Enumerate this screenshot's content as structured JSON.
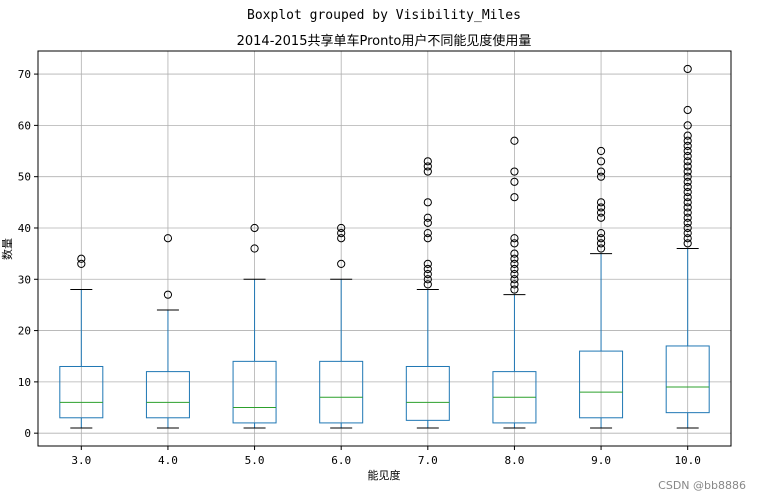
{
  "watermark": "CSDN @bb8886",
  "chart_data": {
    "type": "boxplot",
    "suptitle": "Boxplot grouped by Visibility_Miles",
    "title": "2014-2015共享单车Pronto用户不同能见度使用量",
    "xlabel": "能见度",
    "ylabel": "数量",
    "ylim": [
      -2.5,
      74.5
    ],
    "yticks": [
      0,
      10,
      20,
      30,
      40,
      50,
      60,
      70
    ],
    "grid": true,
    "colors": {
      "box": "#1f77b4",
      "median": "#2ca02c",
      "whisker": "#1f77b4",
      "cap": "#000000",
      "flier": "#000000",
      "grid": "#b0b0b0"
    },
    "categories": [
      "3.0",
      "4.0",
      "5.0",
      "6.0",
      "7.0",
      "8.0",
      "9.0",
      "10.0"
    ],
    "boxes": [
      {
        "whislo": 1,
        "q1": 3,
        "med": 6,
        "q3": 13,
        "whishi": 28,
        "fliers": [
          33,
          34
        ]
      },
      {
        "whislo": 1,
        "q1": 3,
        "med": 6,
        "q3": 12,
        "whishi": 24,
        "fliers": [
          27,
          38
        ]
      },
      {
        "whislo": 1,
        "q1": 2,
        "med": 5,
        "q3": 14,
        "whishi": 30,
        "fliers": [
          36,
          40
        ]
      },
      {
        "whislo": 1,
        "q1": 2,
        "med": 7,
        "q3": 14,
        "whishi": 30,
        "fliers": [
          33,
          38,
          39,
          40
        ]
      },
      {
        "whislo": 1,
        "q1": 2.5,
        "med": 6,
        "q3": 13,
        "whishi": 28,
        "fliers": [
          29,
          30,
          31,
          32,
          33,
          38,
          39,
          41,
          42,
          45,
          51,
          52,
          53
        ]
      },
      {
        "whislo": 1,
        "q1": 2,
        "med": 7,
        "q3": 12,
        "whishi": 27,
        "fliers": [
          28,
          29,
          30,
          31,
          32,
          33,
          34,
          35,
          37,
          38,
          46,
          49,
          51,
          57
        ]
      },
      {
        "whislo": 1,
        "q1": 3,
        "med": 8,
        "q3": 16,
        "whishi": 35,
        "fliers": [
          36,
          37,
          38,
          39,
          42,
          43,
          44,
          45,
          50,
          51,
          53,
          55
        ]
      },
      {
        "whislo": 1,
        "q1": 4,
        "med": 9,
        "q3": 17,
        "whishi": 36,
        "fliers": [
          37,
          38,
          39,
          40,
          41,
          42,
          43,
          44,
          45,
          46,
          47,
          48,
          49,
          50,
          51,
          52,
          53,
          54,
          55,
          56,
          57,
          58,
          60,
          63,
          71
        ]
      }
    ]
  }
}
